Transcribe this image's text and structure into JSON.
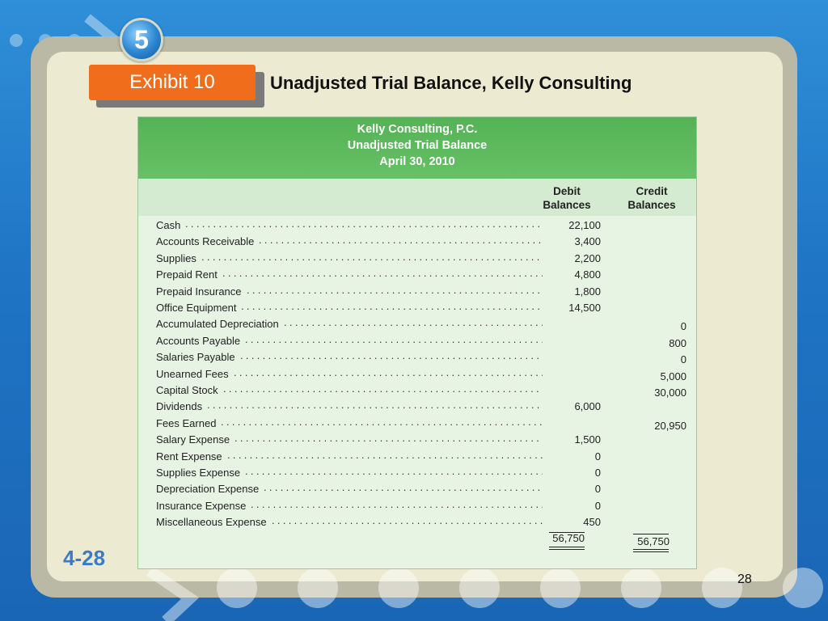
{
  "slide": {
    "step_number": "5",
    "exhibit_label": "Exhibit 10",
    "title": "Unadjusted Trial Balance, Kelly Consulting",
    "slide_code": "4-28",
    "page_number": "28"
  },
  "trial_balance": {
    "company": "Kelly Consulting, P.C.",
    "report_name": "Unadjusted Trial Balance",
    "date": "April 30, 2010",
    "debit_header_1": "Debit",
    "debit_header_2": "Balances",
    "credit_header_1": "Credit",
    "credit_header_2": "Balances",
    "rows": [
      {
        "account": "Cash",
        "debit": "22,100",
        "credit": ""
      },
      {
        "account": "Accounts Receivable",
        "debit": "3,400",
        "credit": ""
      },
      {
        "account": "Supplies",
        "debit": "2,200",
        "credit": ""
      },
      {
        "account": "Prepaid Rent",
        "debit": "4,800",
        "credit": ""
      },
      {
        "account": "Prepaid Insurance",
        "debit": "1,800",
        "credit": ""
      },
      {
        "account": "Office Equipment",
        "debit": "14,500",
        "credit": ""
      },
      {
        "account": "Accumulated Depreciation",
        "debit": "",
        "credit": "0"
      },
      {
        "account": "Accounts Payable",
        "debit": "",
        "credit": "800"
      },
      {
        "account": "Salaries Payable",
        "debit": "",
        "credit": "0"
      },
      {
        "account": "Unearned Fees",
        "debit": "",
        "credit": "5,000"
      },
      {
        "account": "Capital Stock",
        "debit": "",
        "credit": "30,000"
      },
      {
        "account": "Dividends",
        "debit": "6,000",
        "credit": ""
      },
      {
        "account": "Fees Earned",
        "debit": "",
        "credit": "20,950"
      },
      {
        "account": "Salary Expense",
        "debit": "1,500",
        "credit": ""
      },
      {
        "account": "Rent Expense",
        "debit": "0",
        "credit": ""
      },
      {
        "account": "Supplies Expense",
        "debit": "0",
        "credit": ""
      },
      {
        "account": "Depreciation Expense",
        "debit": "0",
        "credit": ""
      },
      {
        "account": "Insurance Expense",
        "debit": "0",
        "credit": ""
      },
      {
        "account": "Miscellaneous Expense",
        "debit": "450",
        "credit": ""
      }
    ],
    "total_debit": "56,750",
    "total_credit": "56,750"
  }
}
